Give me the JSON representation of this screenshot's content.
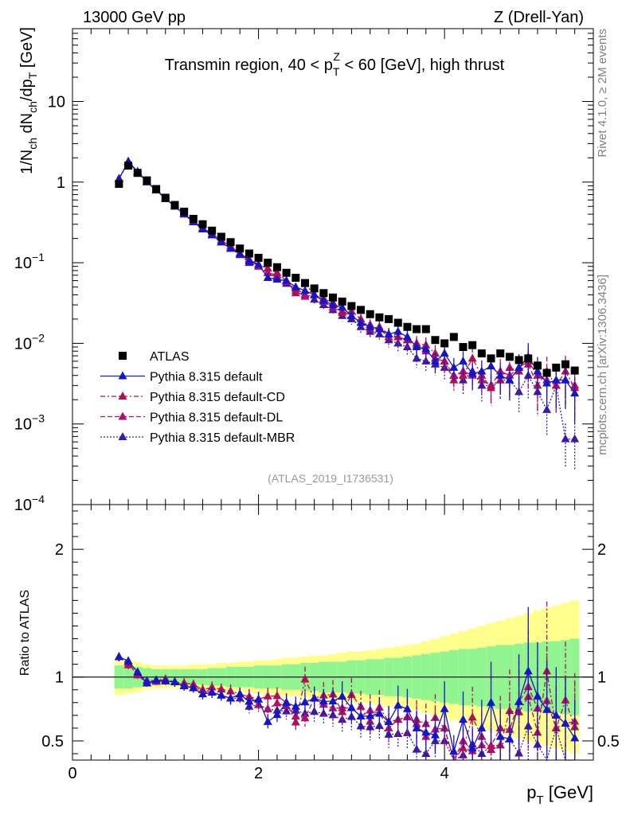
{
  "header": {
    "left": "13000 GeV pp",
    "right": "Z (Drell-Yan)"
  },
  "side": {
    "rivet": "Rivet 4.1.0, ≥ 2M events",
    "mcplots": "mcplots.cern.ch [arXiv:1306.3436]"
  },
  "chart_data": {
    "type": "scatter",
    "title": "Transmin region, 40 < p_T^Z < 60 [GeV], high thrust",
    "title_parts": {
      "pre": "Transmin region, 40 < p",
      "sub": "T",
      "sup": "Z",
      "post": " < 60 [GeV], high thrust"
    },
    "annotation": "(ATLAS_2019_I1736531)",
    "xlabel": "p_T [GeV]",
    "xlabel_parts": {
      "main": "p",
      "sub": "T",
      "unit": " [GeV]"
    },
    "ylabel": "1/N_ch dN_ch/dp_T [GeV]",
    "ylabel_parts": {
      "a": "1/N",
      "a_sub": "ch",
      "b": " dN",
      "b_sub": "ch",
      "c": "/dp",
      "c_sub": "T",
      "d": " [GeV]"
    },
    "ratio_ylabel": "Ratio to ATLAS",
    "xlim": [
      0,
      5.6
    ],
    "ylim": [
      0.0001,
      80
    ],
    "yscale": "log",
    "ratio_ylim": [
      0.35,
      2.35
    ],
    "x_ticks": [
      0,
      2,
      4
    ],
    "x_tick_labels": [
      "0",
      "2",
      "4"
    ],
    "y_ticks": [
      0.0001,
      0.001,
      0.01,
      0.1,
      1,
      10
    ],
    "y_tick_labels": [
      {
        "base": "10",
        "exp": "−4"
      },
      {
        "base": "10",
        "exp": "−3"
      },
      {
        "base": "10",
        "exp": "−2"
      },
      {
        "base": "10",
        "exp": "−1"
      },
      {
        "base": "1",
        "exp": ""
      },
      {
        "base": "10",
        "exp": ""
      }
    ],
    "ratio_ticks": [
      0.5,
      1,
      2
    ],
    "ratio_tick_labels": [
      "0.5",
      "1",
      "2"
    ],
    "x": [
      0.5,
      0.6,
      0.7,
      0.8,
      0.9,
      1.0,
      1.1,
      1.2,
      1.3,
      1.4,
      1.5,
      1.6,
      1.7,
      1.8,
      1.9,
      2.0,
      2.1,
      2.2,
      2.3,
      2.4,
      2.5,
      2.6,
      2.7,
      2.8,
      2.9,
      3.0,
      3.1,
      3.2,
      3.3,
      3.4,
      3.5,
      3.6,
      3.7,
      3.8,
      3.9,
      4.0,
      4.1,
      4.2,
      4.3,
      4.4,
      4.5,
      4.6,
      4.7,
      4.8,
      4.9,
      5.0,
      5.1,
      5.2,
      5.3,
      5.4
    ],
    "data": {
      "name": "ATLAS",
      "values": [
        0.95,
        1.6,
        1.3,
        1.05,
        0.82,
        0.64,
        0.52,
        0.43,
        0.35,
        0.3,
        0.25,
        0.21,
        0.18,
        0.15,
        0.13,
        0.115,
        0.1,
        0.088,
        0.075,
        0.065,
        0.056,
        0.048,
        0.042,
        0.037,
        0.033,
        0.029,
        0.026,
        0.023,
        0.021,
        0.02,
        0.018,
        0.016,
        0.015,
        0.015,
        0.011,
        0.01,
        0.012,
        0.009,
        0.0095,
        0.0075,
        0.0065,
        0.0075,
        0.0068,
        0.0062,
        0.0065,
        0.0053,
        0.0043,
        0.005,
        0.0055,
        0.0046
      ],
      "band_inner": [
        0.09,
        0.09,
        0.08,
        0.07,
        0.06,
        0.06,
        0.06,
        0.06,
        0.06,
        0.06,
        0.07,
        0.07,
        0.08,
        0.08,
        0.08,
        0.09,
        0.09,
        0.09,
        0.1,
        0.1,
        0.11,
        0.11,
        0.12,
        0.12,
        0.12,
        0.13,
        0.13,
        0.14,
        0.14,
        0.15,
        0.15,
        0.16,
        0.17,
        0.18,
        0.19,
        0.2,
        0.21,
        0.22,
        0.22,
        0.23,
        0.24,
        0.25,
        0.25,
        0.26,
        0.27,
        0.27,
        0.28,
        0.28,
        0.29,
        0.3
      ],
      "band_outer": [
        0.14,
        0.13,
        0.12,
        0.1,
        0.09,
        0.09,
        0.09,
        0.09,
        0.1,
        0.1,
        0.1,
        0.11,
        0.11,
        0.12,
        0.12,
        0.13,
        0.13,
        0.14,
        0.15,
        0.15,
        0.16,
        0.17,
        0.17,
        0.18,
        0.19,
        0.2,
        0.2,
        0.21,
        0.22,
        0.23,
        0.24,
        0.25,
        0.26,
        0.28,
        0.3,
        0.32,
        0.34,
        0.36,
        0.38,
        0.4,
        0.42,
        0.44,
        0.46,
        0.48,
        0.5,
        0.52,
        0.54,
        0.56,
        0.58,
        0.6
      ]
    },
    "series": [
      {
        "name": "Pythia 8.315 default",
        "color": "#1515c8",
        "style": "solid",
        "values": [
          1.1,
          1.8,
          1.35,
          1.0,
          0.8,
          0.62,
          0.5,
          0.4,
          0.32,
          0.26,
          0.22,
          0.18,
          0.15,
          0.13,
          0.105,
          0.095,
          0.065,
          0.062,
          0.06,
          0.05,
          0.045,
          0.04,
          0.034,
          0.03,
          0.028,
          0.022,
          0.018,
          0.016,
          0.015,
          0.013,
          0.014,
          0.012,
          0.009,
          0.0085,
          0.006,
          0.0075,
          0.005,
          0.006,
          0.0042,
          0.0045,
          0.0052,
          0.004,
          0.0035,
          0.005,
          0.0068,
          0.0045,
          0.0032,
          0.0035,
          0.0035,
          0.0024
        ],
        "rel_err": [
          0.03,
          0.03,
          0.03,
          0.03,
          0.03,
          0.03,
          0.04,
          0.04,
          0.04,
          0.05,
          0.05,
          0.05,
          0.06,
          0.06,
          0.07,
          0.07,
          0.08,
          0.08,
          0.09,
          0.1,
          0.1,
          0.11,
          0.12,
          0.13,
          0.14,
          0.15,
          0.16,
          0.17,
          0.18,
          0.19,
          0.2,
          0.21,
          0.23,
          0.25,
          0.27,
          0.29,
          0.31,
          0.33,
          0.35,
          0.37,
          0.4,
          0.42,
          0.44,
          0.46,
          0.48,
          0.5,
          0.52,
          0.54,
          0.56,
          0.58
        ]
      },
      {
        "name": "Pythia 8.315 default-CD",
        "color": "#b00f54",
        "style": "dashdot",
        "values": [
          1.1,
          1.75,
          1.33,
          1.0,
          0.8,
          0.63,
          0.5,
          0.41,
          0.33,
          0.27,
          0.23,
          0.19,
          0.16,
          0.13,
          0.11,
          0.095,
          0.085,
          0.075,
          0.06,
          0.042,
          0.055,
          0.04,
          0.036,
          0.032,
          0.024,
          0.025,
          0.02,
          0.015,
          0.016,
          0.013,
          0.012,
          0.011,
          0.01,
          0.0095,
          0.0075,
          0.006,
          0.0035,
          0.004,
          0.0065,
          0.004,
          0.0028,
          0.0035,
          0.005,
          0.0045,
          0.0055,
          0.003,
          0.0045,
          0.003,
          0.0045,
          0.0028
        ],
        "rel_err": [
          0.03,
          0.03,
          0.03,
          0.03,
          0.03,
          0.03,
          0.04,
          0.04,
          0.04,
          0.05,
          0.05,
          0.05,
          0.06,
          0.06,
          0.07,
          0.07,
          0.08,
          0.08,
          0.09,
          0.1,
          0.1,
          0.11,
          0.12,
          0.13,
          0.14,
          0.15,
          0.16,
          0.17,
          0.18,
          0.19,
          0.2,
          0.21,
          0.23,
          0.25,
          0.27,
          0.29,
          0.31,
          0.33,
          0.35,
          0.37,
          0.4,
          0.42,
          0.44,
          0.46,
          0.48,
          0.5,
          0.52,
          0.54,
          0.56,
          0.58
        ]
      },
      {
        "name": "Pythia 8.315 default-DL",
        "color": "#b30f6a",
        "style": "dashed",
        "values": [
          1.1,
          1.78,
          1.32,
          1.0,
          0.79,
          0.62,
          0.5,
          0.4,
          0.32,
          0.27,
          0.22,
          0.18,
          0.15,
          0.13,
          0.11,
          0.09,
          0.075,
          0.07,
          0.058,
          0.045,
          0.038,
          0.04,
          0.033,
          0.028,
          0.025,
          0.022,
          0.018,
          0.017,
          0.015,
          0.012,
          0.012,
          0.011,
          0.0095,
          0.008,
          0.0065,
          0.006,
          0.004,
          0.0045,
          0.004,
          0.0035,
          0.003,
          0.0045,
          0.004,
          0.005,
          0.006,
          0.004,
          0.0035,
          0.003,
          0.0035,
          0.003
        ],
        "rel_err": [
          0.03,
          0.03,
          0.03,
          0.03,
          0.03,
          0.03,
          0.04,
          0.04,
          0.04,
          0.05,
          0.05,
          0.05,
          0.06,
          0.06,
          0.07,
          0.07,
          0.08,
          0.08,
          0.09,
          0.1,
          0.1,
          0.11,
          0.12,
          0.13,
          0.14,
          0.15,
          0.16,
          0.17,
          0.18,
          0.19,
          0.2,
          0.21,
          0.23,
          0.25,
          0.27,
          0.29,
          0.31,
          0.33,
          0.35,
          0.37,
          0.4,
          0.42,
          0.44,
          0.46,
          0.48,
          0.5,
          0.52,
          0.54,
          0.56,
          0.58
        ]
      },
      {
        "name": "Pythia 8.315 default-MBR",
        "color": "#3a1aa0",
        "style": "dotted",
        "values": [
          1.1,
          1.8,
          1.35,
          1.02,
          0.8,
          0.62,
          0.5,
          0.4,
          0.32,
          0.27,
          0.22,
          0.18,
          0.15,
          0.125,
          0.1,
          0.09,
          0.075,
          0.065,
          0.055,
          0.048,
          0.04,
          0.035,
          0.03,
          0.026,
          0.022,
          0.02,
          0.016,
          0.014,
          0.013,
          0.011,
          0.01,
          0.009,
          0.0065,
          0.006,
          0.0055,
          0.005,
          0.004,
          0.0035,
          0.0045,
          0.003,
          0.003,
          0.0035,
          0.0035,
          0.0025,
          0.004,
          0.0025,
          0.0015,
          0.003,
          0.00065,
          0.00065
        ],
        "rel_err": [
          0.03,
          0.03,
          0.03,
          0.03,
          0.03,
          0.03,
          0.04,
          0.04,
          0.04,
          0.05,
          0.05,
          0.05,
          0.06,
          0.06,
          0.07,
          0.07,
          0.08,
          0.08,
          0.09,
          0.1,
          0.1,
          0.11,
          0.12,
          0.13,
          0.14,
          0.15,
          0.16,
          0.17,
          0.18,
          0.19,
          0.2,
          0.21,
          0.23,
          0.25,
          0.27,
          0.29,
          0.31,
          0.33,
          0.35,
          0.37,
          0.4,
          0.42,
          0.44,
          0.46,
          0.48,
          0.5,
          0.52,
          0.54,
          0.56,
          0.58
        ]
      }
    ],
    "legend": [
      "ATLAS",
      "Pythia 8.315 default",
      "Pythia 8.315 default-CD",
      "Pythia 8.315 default-DL",
      "Pythia 8.315 default-MBR"
    ],
    "legend_position": "bottom-left"
  }
}
